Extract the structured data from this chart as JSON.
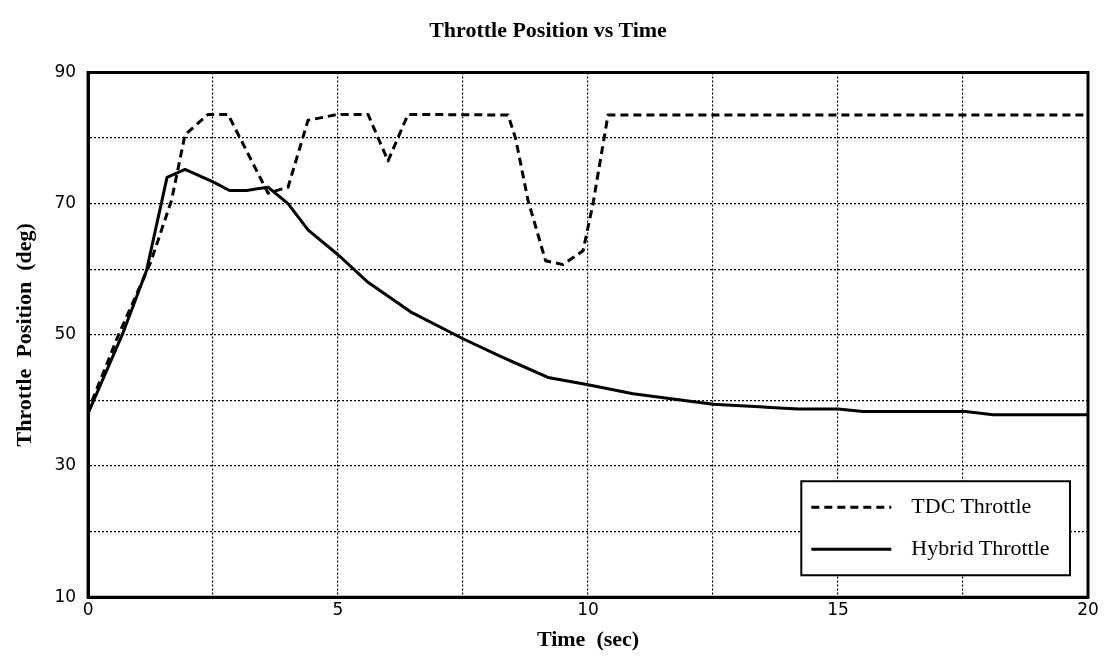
{
  "chart_data": {
    "type": "line",
    "title": "Throttle Position vs Time",
    "xlabel": "Time  (sec)",
    "ylabel": "Throttle  Position  (deg)",
    "xlim": [
      0,
      20
    ],
    "xticks": [
      0,
      {
        "value": 2.5,
        "label": null
      },
      5,
      {
        "value": 7.5,
        "label": null
      },
      10,
      {
        "value": 12.5,
        "label": null
      },
      15,
      {
        "value": 17.5,
        "label": null
      },
      20
    ],
    "ylim": [
      10,
      90
    ],
    "yticks": [
      10,
      {
        "value": 20,
        "label": null
      },
      30,
      {
        "value": 40,
        "label": null
      },
      50,
      {
        "value": 60,
        "label": null
      },
      70,
      {
        "value": 80,
        "label": null
      },
      90
    ],
    "grid": true,
    "legend": "bottom right",
    "marker": "none",
    "series": [
      {
        "name": "TDC Throttle",
        "color": "#000000",
        "line_style": "dashed",
        "x": [
          0,
          0.1,
          0.6,
          1.25,
          1.67,
          1.94,
          2.4,
          2.8,
          3.6,
          4.0,
          4.4,
          5.0,
          5.6,
          6.0,
          6.4,
          8.4,
          8.55,
          8.8,
          9.15,
          9.5,
          9.9,
          10.1,
          10.4,
          20
        ],
        "values": [
          38,
          40.3,
          49.8,
          61,
          70.5,
          80.5,
          83.6,
          83.6,
          71.6,
          72.5,
          82.7,
          83.6,
          83.6,
          76.5,
          83.6,
          83.5,
          80,
          70.5,
          61.3,
          60.7,
          62.8,
          70,
          83.5,
          83.5
        ]
      },
      {
        "name": "Hybrid Throttle",
        "color": "#000000",
        "line_style": "solid",
        "x": [
          0,
          0.7,
          1.17,
          1.58,
          1.94,
          2.5,
          2.83,
          3.17,
          3.6,
          4.0,
          4.4,
          5.0,
          5.6,
          6.45,
          7.5,
          8.25,
          9.2,
          10,
          10.9,
          12.5,
          14.2,
          15,
          15.5,
          17.55,
          18.1,
          20
        ],
        "values": [
          38,
          50.3,
          59.8,
          74,
          75.2,
          73.3,
          72,
          72,
          72.5,
          70,
          66,
          62.2,
          58,
          53.5,
          49.4,
          46.7,
          43.5,
          42.4,
          41,
          39.4,
          38.7,
          38.7,
          38.3,
          38.3,
          37.8,
          37.8
        ]
      }
    ]
  }
}
